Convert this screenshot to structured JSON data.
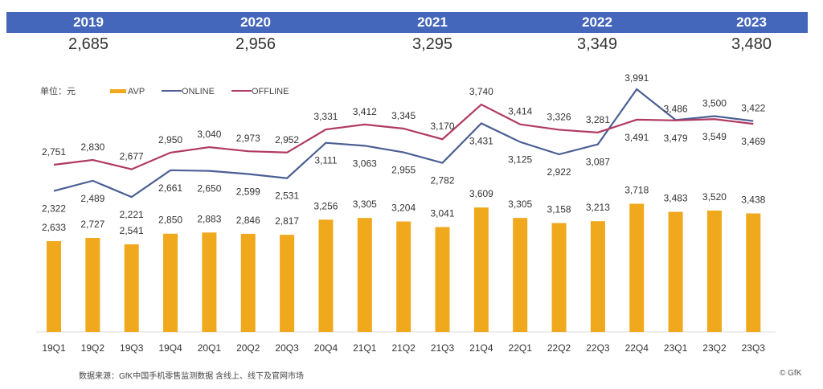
{
  "years": [
    {
      "year": "2019",
      "value": "2,685"
    },
    {
      "year": "2020",
      "value": "2,956"
    },
    {
      "year": "2021",
      "value": "3,295"
    },
    {
      "year": "2022",
      "value": "3,349"
    },
    {
      "year": "2023",
      "value": "3,480"
    }
  ],
  "colors": {
    "band": "#4466bb",
    "avp": "#f0a81c",
    "online": "#4a5f93",
    "offline": "#b03a62"
  },
  "chart_data": {
    "type": "bar",
    "unit_label": "单位：元",
    "legend": [
      "AVP",
      "ONLINE",
      "OFFLINE"
    ],
    "legend_position": "top-left",
    "grid": false,
    "categories": [
      "19Q1",
      "19Q2",
      "19Q3",
      "19Q4",
      "20Q1",
      "20Q2",
      "20Q3",
      "20Q4",
      "21Q1",
      "21Q2",
      "21Q3",
      "21Q4",
      "22Q1",
      "22Q2",
      "22Q3",
      "22Q4",
      "23Q1",
      "23Q2",
      "23Q3"
    ],
    "series": [
      {
        "name": "AVP",
        "type": "bar",
        "values": [
          2633,
          2727,
          2541,
          2850,
          2883,
          2846,
          2817,
          3256,
          3305,
          3204,
          3041,
          3609,
          3305,
          3158,
          3213,
          3718,
          3483,
          3520,
          3438
        ]
      },
      {
        "name": "ONLINE",
        "type": "line",
        "values": [
          2322,
          2489,
          2221,
          2661,
          2650,
          2599,
          2531,
          3111,
          3063,
          2955,
          2782,
          3431,
          3125,
          2922,
          3087,
          3991,
          3486,
          3549,
          3469
        ]
      },
      {
        "name": "OFFLINE",
        "type": "line",
        "values": [
          2751,
          2830,
          2677,
          2950,
          3040,
          2973,
          2952,
          3331,
          3412,
          3345,
          3170,
          3740,
          3414,
          3326,
          3281,
          3491,
          3479,
          3500,
          3422
        ]
      }
    ]
  },
  "footer": {
    "source": "数据来源：GfK中国手机零售监测数据 含线上、线下及官网市场",
    "copyright": "© GfK"
  }
}
